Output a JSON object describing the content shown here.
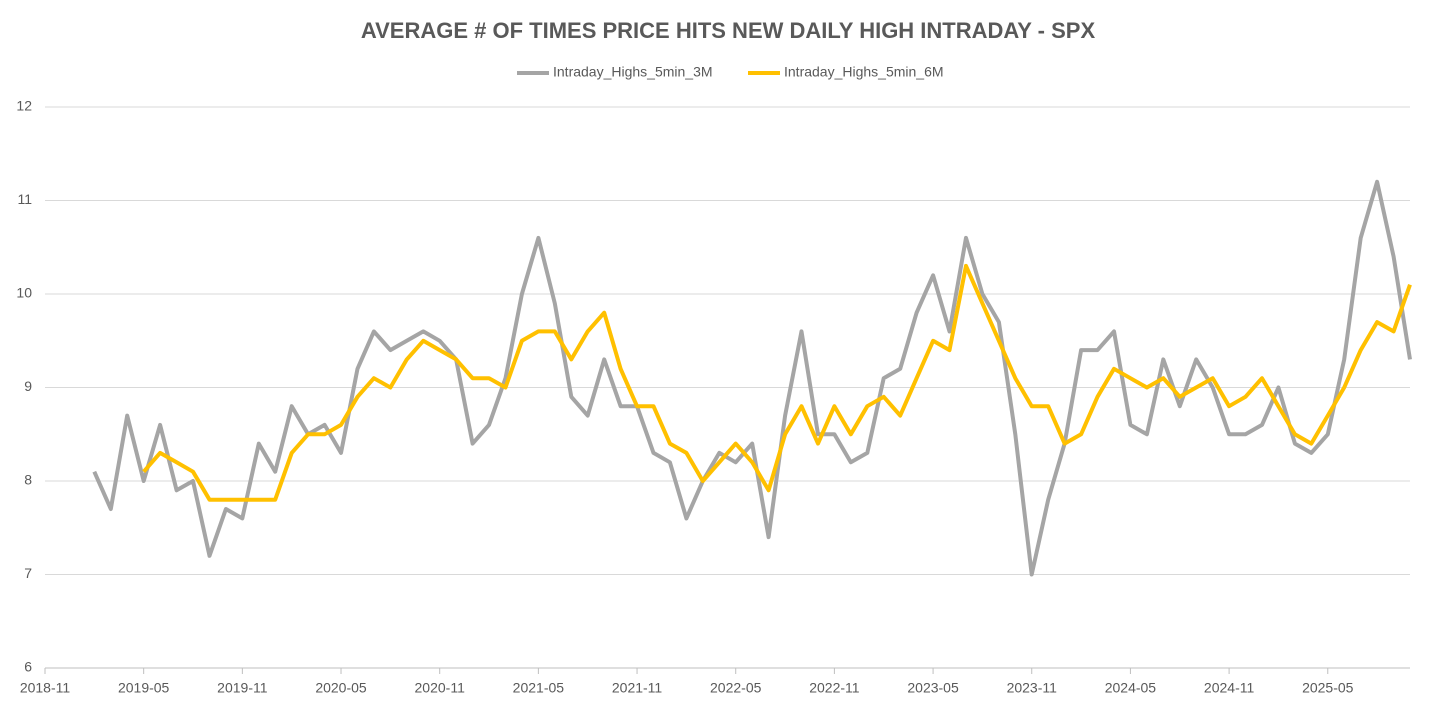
{
  "chart_data": {
    "type": "line",
    "title": "AVERAGE # OF TIMES PRICE HITS NEW DAILY HIGH INTRADAY - SPX",
    "x": [
      "2019-02",
      "2019-03",
      "2019-04",
      "2019-05",
      "2019-06",
      "2019-07",
      "2019-08",
      "2019-09",
      "2019-10",
      "2019-11",
      "2019-12",
      "2020-01",
      "2020-02",
      "2020-03",
      "2020-04",
      "2020-05",
      "2020-06",
      "2020-07",
      "2020-08",
      "2020-09",
      "2020-10",
      "2020-11",
      "2020-12",
      "2021-01",
      "2021-02",
      "2021-03",
      "2021-04",
      "2021-05",
      "2021-06",
      "2021-07",
      "2021-08",
      "2021-09",
      "2021-10",
      "2021-11",
      "2021-12",
      "2022-01",
      "2022-02",
      "2022-03",
      "2022-04",
      "2022-05",
      "2022-06",
      "2022-07",
      "2022-08",
      "2022-09",
      "2022-10",
      "2022-11",
      "2022-12",
      "2023-01",
      "2023-02",
      "2023-03",
      "2023-04",
      "2023-05",
      "2023-06",
      "2023-07",
      "2023-08",
      "2023-09",
      "2023-10",
      "2023-11",
      "2023-12",
      "2024-01",
      "2024-02",
      "2024-03",
      "2024-04",
      "2024-05",
      "2024-06",
      "2024-07",
      "2024-08",
      "2024-09",
      "2024-10",
      "2024-11",
      "2024-12",
      "2025-01",
      "2025-02",
      "2025-03",
      "2025-04",
      "2025-05",
      "2025-06",
      "2025-07",
      "2025-08",
      "2025-09",
      "2025-10"
    ],
    "series": [
      {
        "name": "Intraday_Highs_5min_3M",
        "color": "#a5a5a5",
        "values": [
          8.1,
          7.7,
          8.7,
          8.0,
          8.6,
          7.9,
          8.0,
          7.2,
          7.7,
          7.6,
          8.4,
          8.1,
          8.8,
          8.5,
          8.6,
          8.3,
          9.2,
          9.6,
          9.4,
          9.5,
          9.6,
          9.5,
          9.3,
          8.4,
          8.6,
          9.1,
          10.0,
          10.6,
          9.9,
          8.9,
          8.7,
          9.3,
          8.8,
          8.8,
          8.3,
          8.2,
          7.6,
          8.0,
          8.3,
          8.2,
          8.4,
          7.4,
          8.7,
          9.6,
          8.5,
          8.5,
          8.2,
          8.3,
          9.1,
          9.2,
          9.8,
          10.2,
          9.6,
          10.6,
          10.0,
          9.7,
          8.5,
          7.0,
          7.8,
          8.4,
          9.4,
          9.4,
          9.6,
          8.6,
          8.5,
          9.3,
          8.8,
          9.3,
          9.0,
          8.5,
          8.5,
          8.6,
          9.0,
          8.4,
          8.3,
          8.5,
          9.3,
          10.6,
          11.2,
          10.4,
          9.3
        ]
      },
      {
        "name": "Intraday_Highs_5min_6M",
        "color": "#ffc000",
        "values": [
          null,
          null,
          null,
          8.1,
          8.3,
          8.2,
          8.1,
          7.8,
          7.8,
          7.8,
          7.8,
          7.8,
          8.3,
          8.5,
          8.5,
          8.6,
          8.9,
          9.1,
          9.0,
          9.3,
          9.5,
          9.4,
          9.3,
          9.1,
          9.1,
          9.0,
          9.5,
          9.6,
          9.6,
          9.3,
          9.6,
          9.8,
          9.2,
          8.8,
          8.8,
          8.4,
          8.3,
          8.0,
          8.2,
          8.4,
          8.2,
          7.9,
          8.5,
          8.8,
          8.4,
          8.8,
          8.5,
          8.8,
          8.9,
          8.7,
          9.1,
          9.5,
          9.4,
          10.3,
          9.9,
          9.5,
          9.1,
          8.8,
          8.8,
          8.4,
          8.5,
          8.9,
          9.2,
          9.1,
          9.0,
          9.1,
          8.9,
          9.0,
          9.1,
          8.8,
          8.9,
          9.1,
          8.8,
          8.5,
          8.4,
          8.7,
          9.0,
          9.4,
          9.7,
          9.6,
          10.1
        ]
      }
    ],
    "xlim": [
      "2018-11",
      "2025-10"
    ],
    "xticks": [
      "2018-11",
      "2019-05",
      "2019-11",
      "2020-05",
      "2020-11",
      "2021-05",
      "2021-11",
      "2022-05",
      "2022-11",
      "2023-05",
      "2023-11",
      "2024-05",
      "2024-11",
      "2025-05"
    ],
    "ylim": [
      6,
      12
    ],
    "yticks": [
      6,
      7,
      8,
      9,
      10,
      11,
      12
    ],
    "grid": true,
    "legend": "top"
  }
}
